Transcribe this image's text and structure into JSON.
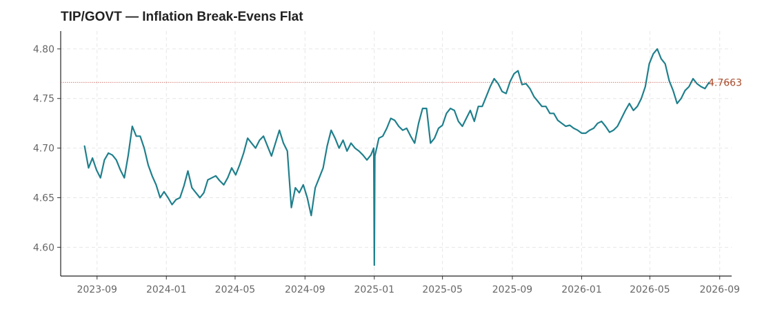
{
  "chart_data": {
    "type": "line",
    "title": "TIP/GOVT — Inflation Break-Evens Flat",
    "xlabel": "",
    "ylabel": "",
    "ylim": [
      4.571,
      4.818
    ],
    "xlim": [
      "2023-06-29",
      "2026-09-22"
    ],
    "grid": true,
    "colors": {
      "line": "#1f7f8c",
      "reference": "#c0392b",
      "last_label": "#a84a2a"
    },
    "x_ticks": [
      "2023-09",
      "2024-01",
      "2024-05",
      "2024-09",
      "2025-01",
      "2025-05",
      "2025-09",
      "2026-01",
      "2026-05",
      "2026-09"
    ],
    "y_ticks": [
      "4.60",
      "4.65",
      "4.70",
      "4.75",
      "4.80"
    ],
    "last_value": 4.7663,
    "last_value_label": "4.7663",
    "series": [
      {
        "x": [
          "2023-08-10",
          "2023-08-17",
          "2023-08-24",
          "2023-08-31",
          "2023-09-07",
          "2023-09-14",
          "2023-09-21",
          "2023-09-28",
          "2023-10-05",
          "2023-10-12",
          "2023-10-19",
          "2023-10-26",
          "2023-11-02",
          "2023-11-09",
          "2023-11-16",
          "2023-11-23",
          "2023-11-30",
          "2023-12-07",
          "2023-12-14",
          "2023-12-21",
          "2023-12-28",
          "2024-01-04",
          "2024-01-11",
          "2024-01-18",
          "2024-01-25",
          "2024-02-01",
          "2024-02-08",
          "2024-02-15",
          "2024-02-22",
          "2024-02-29",
          "2024-03-07",
          "2024-03-14",
          "2024-03-21",
          "2024-03-28",
          "2024-04-04",
          "2024-04-11",
          "2024-04-18",
          "2024-04-25",
          "2024-05-02",
          "2024-05-09",
          "2024-05-16",
          "2024-05-23",
          "2024-05-30",
          "2024-06-06",
          "2024-06-13",
          "2024-06-20",
          "2024-06-27",
          "2024-07-04",
          "2024-07-11",
          "2024-07-18",
          "2024-07-25",
          "2024-08-01",
          "2024-08-08",
          "2024-08-15",
          "2024-08-22",
          "2024-08-29",
          "2024-09-05",
          "2024-09-12",
          "2024-09-19",
          "2024-09-26",
          "2024-10-03",
          "2024-10-10",
          "2024-10-17",
          "2024-10-24",
          "2024-10-31",
          "2024-11-07",
          "2024-11-14",
          "2024-11-21",
          "2024-11-28",
          "2024-12-05",
          "2024-12-12",
          "2024-12-19",
          "2024-12-26",
          "2024-12-31",
          "2025-01-01",
          "2025-01-02",
          "2025-01-09",
          "2025-01-16",
          "2025-01-23",
          "2025-01-30",
          "2025-02-06",
          "2025-02-13",
          "2025-02-20",
          "2025-02-27",
          "2025-03-06",
          "2025-03-13",
          "2025-03-20",
          "2025-03-27",
          "2025-04-03",
          "2025-04-10",
          "2025-04-17",
          "2025-04-24",
          "2025-05-01",
          "2025-05-08",
          "2025-05-15",
          "2025-05-22",
          "2025-05-29",
          "2025-06-05",
          "2025-06-12",
          "2025-06-19",
          "2025-06-26",
          "2025-07-03",
          "2025-07-10",
          "2025-07-17",
          "2025-07-24",
          "2025-07-31",
          "2025-08-07",
          "2025-08-14",
          "2025-08-21",
          "2025-08-28",
          "2025-09-04",
          "2025-09-11",
          "2025-09-18",
          "2025-09-25",
          "2025-10-02",
          "2025-10-09",
          "2025-10-16",
          "2025-10-23",
          "2025-10-30",
          "2025-11-06",
          "2025-11-13",
          "2025-11-20",
          "2025-11-27",
          "2025-12-04",
          "2025-12-11",
          "2025-12-18",
          "2025-12-25",
          "2026-01-01",
          "2026-01-08",
          "2026-01-15",
          "2026-01-22",
          "2026-01-29",
          "2026-02-05",
          "2026-02-12",
          "2026-02-19",
          "2026-02-26",
          "2026-03-05",
          "2026-03-12",
          "2026-03-19",
          "2026-03-26",
          "2026-04-02",
          "2026-04-09",
          "2026-04-16",
          "2026-04-23",
          "2026-04-30",
          "2026-05-07",
          "2026-05-14",
          "2026-05-21",
          "2026-05-28",
          "2026-06-04",
          "2026-06-11",
          "2026-06-18",
          "2026-06-25",
          "2026-07-02",
          "2026-07-09",
          "2026-07-16",
          "2026-07-23",
          "2026-07-30",
          "2026-08-06",
          "2026-08-13"
        ],
        "values": [
          4.702,
          4.68,
          4.69,
          4.678,
          4.67,
          4.688,
          4.695,
          4.693,
          4.688,
          4.678,
          4.67,
          4.693,
          4.722,
          4.712,
          4.712,
          4.7,
          4.683,
          4.672,
          4.663,
          4.65,
          4.656,
          4.65,
          4.643,
          4.648,
          4.65,
          4.662,
          4.677,
          4.66,
          4.655,
          4.65,
          4.655,
          4.668,
          4.67,
          4.672,
          4.667,
          4.663,
          4.67,
          4.68,
          4.673,
          4.683,
          4.695,
          4.71,
          4.705,
          4.7,
          4.708,
          4.712,
          4.702,
          4.692,
          4.705,
          4.718,
          4.705,
          4.697,
          4.64,
          4.66,
          4.655,
          4.663,
          4.65,
          4.632,
          4.66,
          4.67,
          4.68,
          4.702,
          4.718,
          4.71,
          4.7,
          4.708,
          4.697,
          4.705,
          4.7,
          4.697,
          4.693,
          4.688,
          4.693,
          4.7,
          4.582,
          4.692,
          4.71,
          4.712,
          4.72,
          4.73,
          4.728,
          4.722,
          4.718,
          4.72,
          4.712,
          4.705,
          4.725,
          4.74,
          4.74,
          4.705,
          4.71,
          4.72,
          4.723,
          4.735,
          4.74,
          4.738,
          4.727,
          4.722,
          4.73,
          4.738,
          4.727,
          4.742,
          4.742,
          4.752,
          4.762,
          4.77,
          4.765,
          4.757,
          4.755,
          4.767,
          4.775,
          4.778,
          4.764,
          4.765,
          4.76,
          4.752,
          4.747,
          4.742,
          4.742,
          4.735,
          4.735,
          4.728,
          4.725,
          4.722,
          4.723,
          4.72,
          4.718,
          4.715,
          4.715,
          4.718,
          4.72,
          4.725,
          4.727,
          4.722,
          4.716,
          4.718,
          4.722,
          4.73,
          4.738,
          4.745,
          4.738,
          4.742,
          4.75,
          4.762,
          4.785,
          4.795,
          4.8,
          4.79,
          4.785,
          4.768,
          4.758,
          4.745,
          4.75,
          4.758,
          4.762,
          4.77,
          4.765,
          4.762,
          4.76,
          4.766
        ]
      }
    ]
  }
}
